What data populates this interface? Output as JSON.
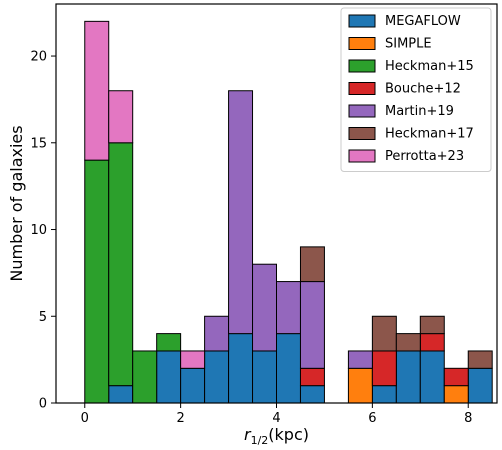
{
  "chart_data": {
    "type": "bar",
    "stacked": true,
    "bin_width": 0.5,
    "xlabel_main": "r",
    "xlabel_sub": "1/2",
    "xlabel_unit": "(kpc)",
    "ylabel": "Number of galaxies",
    "xlim": [
      -0.6,
      8.6
    ],
    "ylim": [
      0,
      23
    ],
    "xticks": [
      0,
      2,
      4,
      6,
      8
    ],
    "yticks": [
      0,
      5,
      10,
      15,
      20
    ],
    "legend_position": "top-right",
    "series": [
      {
        "name": "MEGAFLOW",
        "color": "#1f77b4",
        "bins": [
          {
            "x": 0.5,
            "v": 1
          },
          {
            "x": 1.5,
            "v": 3
          },
          {
            "x": 2.0,
            "v": 2
          },
          {
            "x": 2.5,
            "v": 3
          },
          {
            "x": 3.0,
            "v": 4
          },
          {
            "x": 3.5,
            "v": 3
          },
          {
            "x": 4.0,
            "v": 4
          },
          {
            "x": 4.5,
            "v": 1
          },
          {
            "x": 6.0,
            "v": 1
          },
          {
            "x": 6.5,
            "v": 3
          },
          {
            "x": 7.0,
            "v": 3
          },
          {
            "x": 8.0,
            "v": 2
          }
        ]
      },
      {
        "name": "SIMPLE",
        "color": "#ff7f0e",
        "bins": [
          {
            "x": 5.5,
            "v": 2
          },
          {
            "x": 7.5,
            "v": 1
          }
        ]
      },
      {
        "name": "Heckman+15",
        "color": "#2ca02c",
        "bins": [
          {
            "x": 0.0,
            "v": 14
          },
          {
            "x": 0.5,
            "v": 14
          },
          {
            "x": 1.0,
            "v": 3
          },
          {
            "x": 1.5,
            "v": 1
          }
        ]
      },
      {
        "name": "Bouche+12",
        "color": "#d62728",
        "bins": [
          {
            "x": 4.5,
            "v": 1
          },
          {
            "x": 6.0,
            "v": 2
          },
          {
            "x": 7.0,
            "v": 1
          },
          {
            "x": 7.5,
            "v": 1
          }
        ]
      },
      {
        "name": "Martin+19",
        "color": "#9467bd",
        "bins": [
          {
            "x": 2.5,
            "v": 2
          },
          {
            "x": 3.0,
            "v": 14
          },
          {
            "x": 3.5,
            "v": 5
          },
          {
            "x": 4.0,
            "v": 3
          },
          {
            "x": 4.5,
            "v": 5
          },
          {
            "x": 5.5,
            "v": 1
          }
        ]
      },
      {
        "name": "Heckman+17",
        "color": "#8c564b",
        "bins": [
          {
            "x": 4.5,
            "v": 2
          },
          {
            "x": 6.0,
            "v": 2
          },
          {
            "x": 6.5,
            "v": 1
          },
          {
            "x": 7.0,
            "v": 1
          },
          {
            "x": 8.0,
            "v": 1
          }
        ]
      },
      {
        "name": "Perrotta+23",
        "color": "#e377c2",
        "bins": [
          {
            "x": 0.0,
            "v": 8
          },
          {
            "x": 0.5,
            "v": 3
          },
          {
            "x": 2.0,
            "v": 1
          }
        ]
      }
    ]
  }
}
